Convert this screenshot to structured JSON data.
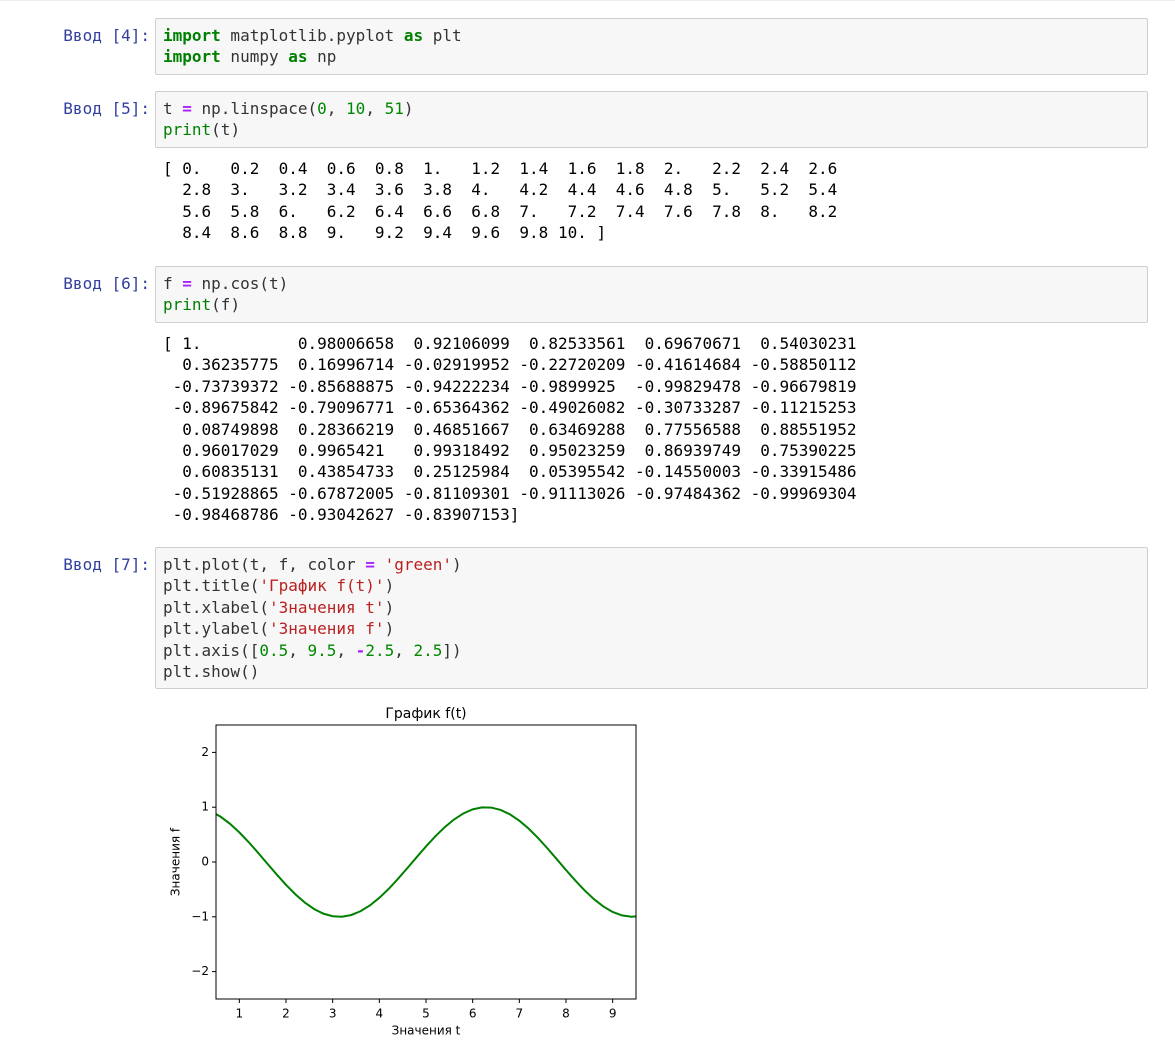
{
  "cells": [
    {
      "prompt": "Ввод [4]:",
      "code": [
        [
          {
            "text": "import",
            "color": "#008000",
            "bold": true
          },
          {
            "text": " matplotlib.pyplot "
          },
          {
            "text": "as",
            "color": "#008000",
            "bold": true
          },
          {
            "text": " plt"
          }
        ],
        [
          {
            "text": "import",
            "color": "#008000",
            "bold": true
          },
          {
            "text": " numpy "
          },
          {
            "text": "as",
            "color": "#008000",
            "bold": true
          },
          {
            "text": " np"
          }
        ]
      ],
      "output": []
    },
    {
      "prompt": "Ввод [5]:",
      "code": [
        [
          {
            "text": "t "
          },
          {
            "text": "=",
            "color": "#AA22FF",
            "bold": true
          },
          {
            "text": " np.linspace("
          },
          {
            "text": "0",
            "color": "#008800"
          },
          {
            "text": ", "
          },
          {
            "text": "10",
            "color": "#008800"
          },
          {
            "text": ", "
          },
          {
            "text": "51",
            "color": "#008800"
          },
          {
            "text": ")"
          }
        ],
        [
          {
            "text": "print",
            "color": "#008000"
          },
          {
            "text": "(t)"
          }
        ]
      ],
      "output": [
        "[ 0.   0.2  0.4  0.6  0.8  1.   1.2  1.4  1.6  1.8  2.   2.2  2.4  2.6",
        "  2.8  3.   3.2  3.4  3.6  3.8  4.   4.2  4.4  4.6  4.8  5.   5.2  5.4",
        "  5.6  5.8  6.   6.2  6.4  6.6  6.8  7.   7.2  7.4  7.6  7.8  8.   8.2",
        "  8.4  8.6  8.8  9.   9.2  9.4  9.6  9.8 10. ]"
      ]
    },
    {
      "prompt": "Ввод [6]:",
      "code": [
        [
          {
            "text": "f "
          },
          {
            "text": "=",
            "color": "#AA22FF",
            "bold": true
          },
          {
            "text": " np.cos(t)"
          }
        ],
        [
          {
            "text": "print",
            "color": "#008000"
          },
          {
            "text": "(f)"
          }
        ]
      ],
      "output": [
        "[ 1.          0.98006658  0.92106099  0.82533561  0.69670671  0.54030231",
        "  0.36235775  0.16996714 -0.02919952 -0.22720209 -0.41614684 -0.58850112",
        " -0.73739372 -0.85688875 -0.94222234 -0.9899925  -0.99829478 -0.96679819",
        " -0.89675842 -0.79096771 -0.65364362 -0.49026082 -0.30733287 -0.11215253",
        "  0.08749898  0.28366219  0.46851667  0.63469288  0.77556588  0.88551952",
        "  0.96017029  0.9965421   0.99318492  0.95023259  0.86939749  0.75390225",
        "  0.60835131  0.43854733  0.25125984  0.05395542 -0.14550003 -0.33915486",
        " -0.51928865 -0.67872005 -0.81109301 -0.91113026 -0.97484362 -0.99969304",
        " -0.98468786 -0.93042627 -0.83907153]"
      ]
    },
    {
      "prompt": "Ввод [7]:",
      "code": [
        [
          {
            "text": "plt.plot(t, f, color "
          },
          {
            "text": "=",
            "color": "#AA22FF",
            "bold": true
          },
          {
            "text": " "
          },
          {
            "text": "'green'",
            "color": "#BA2121"
          },
          {
            "text": ")"
          }
        ],
        [
          {
            "text": "plt.title("
          },
          {
            "text": "'График f(t)'",
            "color": "#BA2121"
          },
          {
            "text": ")"
          }
        ],
        [
          {
            "text": "plt.xlabel("
          },
          {
            "text": "'Значения t'",
            "color": "#BA2121"
          },
          {
            "text": ")"
          }
        ],
        [
          {
            "text": "plt.ylabel("
          },
          {
            "text": "'Значения f'",
            "color": "#BA2121"
          },
          {
            "text": ")"
          }
        ],
        [
          {
            "text": "plt.axis(["
          },
          {
            "text": "0.5",
            "color": "#008800"
          },
          {
            "text": ", "
          },
          {
            "text": "9.5",
            "color": "#008800"
          },
          {
            "text": ", "
          },
          {
            "text": "-",
            "color": "#AA22FF",
            "bold": true
          },
          {
            "text": "2.5",
            "color": "#008800"
          },
          {
            "text": ", "
          },
          {
            "text": "2.5",
            "color": "#008800"
          },
          {
            "text": "])"
          }
        ],
        [
          {
            "text": "plt.show()"
          }
        ]
      ],
      "output": []
    }
  ],
  "chart_data": {
    "type": "line",
    "title": "График f(t)",
    "x_label": "Значения t",
    "y_label": "Значения f",
    "color": "#008000",
    "x": [
      0,
      0.2,
      0.4,
      0.6,
      0.8,
      1,
      1.2,
      1.4,
      1.6,
      1.8,
      2,
      2.2,
      2.4,
      2.6,
      2.8,
      3,
      3.2,
      3.4,
      3.6,
      3.8,
      4,
      4.2,
      4.4,
      4.6,
      4.8,
      5,
      5.2,
      5.4,
      5.6,
      5.8,
      6,
      6.2,
      6.4,
      6.6,
      6.8,
      7,
      7.2,
      7.4,
      7.6,
      7.8,
      8,
      8.2,
      8.4,
      8.6,
      8.8,
      9,
      9.2,
      9.4,
      9.6,
      9.8,
      10
    ],
    "values": [
      1,
      0.98006658,
      0.92106099,
      0.82533561,
      0.69670671,
      0.54030231,
      0.36235775,
      0.16996714,
      -0.02919952,
      -0.22720209,
      -0.41614684,
      -0.58850112,
      -0.73739372,
      -0.85688875,
      -0.94222234,
      -0.9899925,
      -0.99829478,
      -0.96679819,
      -0.89675842,
      -0.79096771,
      -0.65364362,
      -0.49026082,
      -0.30733287,
      -0.11215253,
      0.08749898,
      0.28366219,
      0.46851667,
      0.63469288,
      0.77556588,
      0.88551952,
      0.96017029,
      0.9965421,
      0.99318492,
      0.95023259,
      0.86939749,
      0.75390225,
      0.60835131,
      0.43854733,
      0.25125984,
      0.05395542,
      -0.14550003,
      -0.33915486,
      -0.51928865,
      -0.67872005,
      -0.81109301,
      -0.91113026,
      -0.97484362,
      -0.99969304,
      -0.98468786,
      -0.93042627,
      -0.83907153
    ],
    "xlim": [
      0.5,
      9.5
    ],
    "ylim": [
      -2.5,
      2.5
    ],
    "xticks": [
      1,
      2,
      3,
      4,
      5,
      6,
      7,
      8,
      9
    ],
    "yticks": [
      {
        "value": -2,
        "label": "−2"
      },
      {
        "value": -1,
        "label": "−1"
      },
      0,
      1,
      2
    ]
  }
}
